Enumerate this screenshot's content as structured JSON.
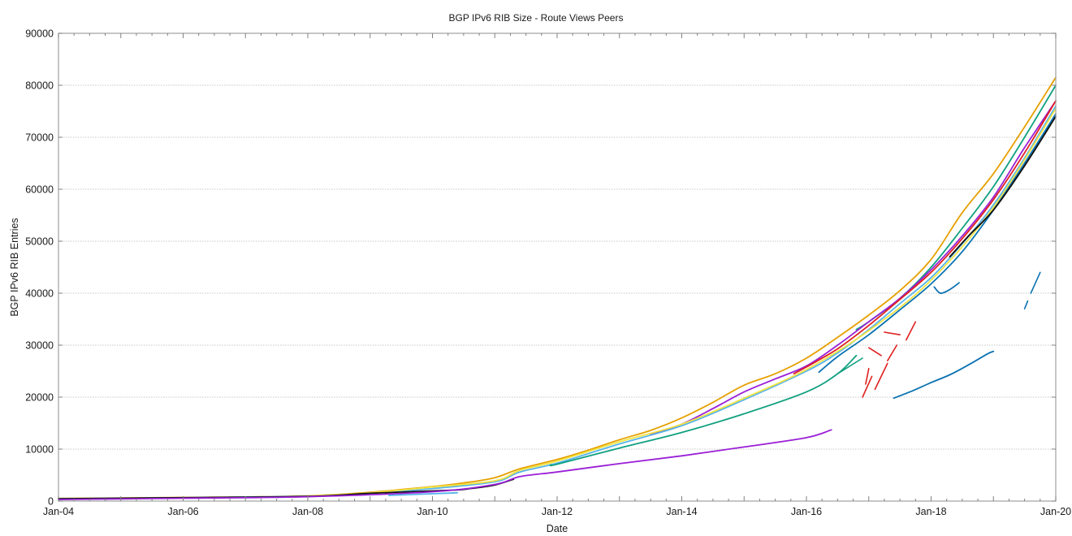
{
  "chart_data": {
    "type": "line",
    "title": "BGP IPv6 RIB Size - Route Views Peers",
    "xlabel": "Date",
    "ylabel": "BGP IPv6 RIB Entries",
    "xlim": [
      2004,
      2020
    ],
    "ylim": [
      0,
      90000
    ],
    "x_ticks": [
      "Jan-04",
      "Jan-06",
      "Jan-08",
      "Jan-10",
      "Jan-12",
      "Jan-14",
      "Jan-16",
      "Jan-18",
      "Jan-20"
    ],
    "x_tick_years": [
      2004,
      2006,
      2008,
      2010,
      2012,
      2014,
      2016,
      2018,
      2020
    ],
    "y_ticks": [
      0,
      10000,
      20000,
      30000,
      40000,
      50000,
      60000,
      70000,
      80000,
      90000
    ],
    "grid": true,
    "legend": "none",
    "series": [
      {
        "name": "peer-orange",
        "color": "#e6a000",
        "x": [
          2004,
          2006,
          2008,
          2009,
          2010,
          2010.5,
          2011,
          2011.4,
          2012,
          2012.5,
          2013,
          2013.5,
          2014,
          2014.5,
          2015,
          2015.5,
          2016,
          2016.5,
          2017,
          2017.5,
          2018,
          2018.5,
          2019,
          2019.5,
          2020
        ],
        "y": [
          500,
          700,
          1000,
          1700,
          2800,
          3500,
          4500,
          6200,
          8000,
          9800,
          11800,
          13600,
          16000,
          19000,
          22300,
          24500,
          27500,
          31500,
          35800,
          40500,
          46500,
          55500,
          63000,
          72000,
          81500
        ]
      },
      {
        "name": "peer-green-top",
        "color": "#10a080",
        "x": [
          2016.8,
          2017,
          2017.5,
          2018,
          2018.5,
          2019,
          2019.5,
          2020
        ],
        "y": [
          33000,
          34500,
          39000,
          45000,
          52500,
          60500,
          70000,
          80000
        ]
      },
      {
        "name": "peer-purple",
        "color": "#9a1fd6",
        "x": [
          2013.5,
          2014,
          2014.5,
          2015,
          2015.5,
          2016,
          2016.5,
          2017,
          2017.5,
          2018,
          2018.5,
          2019,
          2019.5,
          2020
        ],
        "y": [
          12800,
          14800,
          17800,
          21000,
          23500,
          26000,
          30000,
          34500,
          39000,
          44500,
          51000,
          58500,
          68000,
          77000
        ]
      },
      {
        "name": "peer-red",
        "color": "#e02020",
        "x": [
          2015.8,
          2016,
          2016.5,
          2017,
          2017.5,
          2018,
          2018.5,
          2019,
          2019.5,
          2020
        ],
        "y": [
          24500,
          25800,
          29300,
          33800,
          38800,
          44000,
          50500,
          58000,
          67000,
          77000
        ]
      },
      {
        "name": "peer-lightblue",
        "color": "#56b4e9",
        "x": [
          2004,
          2008,
          2009,
          2010,
          2011,
          2011.4,
          2012,
          2013,
          2014,
          2015,
          2016,
          2016.5,
          2017,
          2017.5,
          2018,
          2018.5,
          2019,
          2019.5,
          2020
        ],
        "y": [
          450,
          900,
          1500,
          2400,
          3700,
          5600,
          7300,
          11000,
          14500,
          19500,
          25000,
          28500,
          33000,
          38000,
          43000,
          49500,
          57000,
          66000,
          76000
        ]
      },
      {
        "name": "peer-yellow",
        "color": "#f0e442",
        "x": [
          2008,
          2009,
          2010,
          2011,
          2011.4,
          2012,
          2013,
          2014,
          2015,
          2016,
          2017,
          2018,
          2019,
          2020
        ],
        "y": [
          950,
          1600,
          2700,
          3900,
          5900,
          7700,
          11400,
          14800,
          19800,
          25300,
          32800,
          42500,
          56500,
          75500
        ]
      },
      {
        "name": "peer-green",
        "color": "#10a080",
        "x": [
          2011.9,
          2012,
          2013,
          2014,
          2015,
          2016,
          2016.5,
          2016.8
        ],
        "y": [
          7000,
          7100,
          10200,
          13200,
          16800,
          21000,
          24500,
          28000
        ]
      },
      {
        "name": "peer-blue",
        "color": "#0a72b2",
        "x": [
          2016.2,
          2016.5,
          2017,
          2017.5,
          2018,
          2018.5,
          2019,
          2019.5,
          2020
        ],
        "y": [
          24800,
          27800,
          32000,
          36800,
          41800,
          48000,
          56000,
          65000,
          74500
        ]
      },
      {
        "name": "peer-black",
        "color": "#111111",
        "x": [
          2004,
          2006,
          2008,
          2009,
          2010.3,
          2010.6,
          2011,
          2011.3
        ],
        "y": [
          450,
          650,
          900,
          1500,
          2100,
          2400,
          3100,
          4200
        ]
      },
      {
        "name": "peer-black-late",
        "color": "#111111",
        "x": [
          2018.3,
          2018.6,
          2019,
          2019.5,
          2020
        ],
        "y": [
          47000,
          51000,
          56000,
          64500,
          74000
        ]
      },
      {
        "name": "peer-purple-low",
        "color": "#9a1fd6",
        "x": [
          2004,
          2006,
          2008,
          2010,
          2011,
          2011.4,
          2012,
          2013,
          2014,
          2015,
          2016,
          2016.4
        ],
        "y": [
          300,
          550,
          850,
          1800,
          3200,
          4700,
          5600,
          7200,
          8700,
          10400,
          12200,
          13700
        ]
      },
      {
        "name": "peer-lightblue-early",
        "color": "#56b4e9",
        "x": [
          2009.3,
          2010.4
        ],
        "y": [
          1100,
          1600
        ]
      },
      {
        "name": "peer-blue-gap",
        "color": "#0a72b2",
        "x": [
          2017.4,
          2017.7,
          2018,
          2018.3,
          2018.6,
          2018.9,
          2019
        ],
        "y": [
          19800,
          21200,
          22800,
          24300,
          26200,
          28300,
          28800
        ]
      },
      {
        "name": "peer-blue-dip",
        "color": "#0a72b2",
        "x": [
          2018.05,
          2018.15,
          2018.3,
          2018.45
        ],
        "y": [
          41200,
          40000,
          40700,
          42000
        ]
      }
    ],
    "fragments": [
      {
        "color": "#e02020",
        "x": [
          2016.9,
          2017.05
        ],
        "y": [
          20000,
          24000
        ]
      },
      {
        "color": "#e02020",
        "x": [
          2017.1,
          2017.3
        ],
        "y": [
          21500,
          26500
        ]
      },
      {
        "color": "#e02020",
        "x": [
          2017.3,
          2017.45
        ],
        "y": [
          27000,
          30000
        ]
      },
      {
        "color": "#e02020",
        "x": [
          2017.0,
          2017.2
        ],
        "y": [
          29500,
          28000
        ]
      },
      {
        "color": "#e02020",
        "x": [
          2017.25,
          2017.5
        ],
        "y": [
          32500,
          32000
        ]
      },
      {
        "color": "#e02020",
        "x": [
          2017.6,
          2017.75
        ],
        "y": [
          31000,
          34500
        ]
      },
      {
        "color": "#e02020",
        "x": [
          2016.95,
          2017.0
        ],
        "y": [
          22500,
          25500
        ]
      },
      {
        "color": "#10a080",
        "x": [
          2016.5,
          2016.9
        ],
        "y": [
          24500,
          27500
        ]
      },
      {
        "color": "#0a72b2",
        "x": [
          2019.6,
          2019.75
        ],
        "y": [
          40000,
          44000
        ]
      },
      {
        "color": "#0a72b2",
        "x": [
          2019.5,
          2019.55
        ],
        "y": [
          37000,
          38500
        ]
      }
    ]
  }
}
